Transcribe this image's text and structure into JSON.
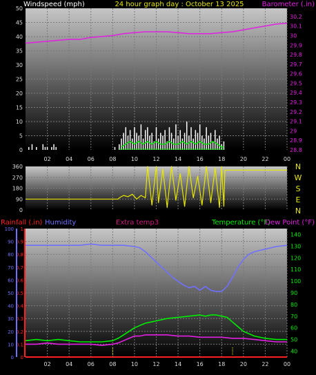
{
  "colors": {
    "background": "#000000",
    "wind": "#ffffff",
    "gust": "#ffffff",
    "wind_avg": "#00e000",
    "barometer": "#e020e0",
    "direction": "#e8e800",
    "rainfall": "#ff2020",
    "humidity": "#7070ff",
    "extra_temp": "#cc1a7a",
    "temperature": "#00ee00",
    "dew_point": "#e020e0",
    "bracket_marker": "#e8e800"
  },
  "chart_data": [
    {
      "type": "line",
      "title": "24 hour graph day : October 13 2025",
      "left_axis_label": "Windspeed (mph)",
      "right_axis_label": "Barometer (.in)",
      "x_ticks": [
        "02",
        "04",
        "06",
        "08",
        "10",
        "12",
        "14",
        "16",
        "18",
        "20",
        "22",
        "00"
      ],
      "left_ylim": [
        0,
        50
      ],
      "left_ticks": [
        "0",
        "5",
        "10",
        "15",
        "20",
        "25",
        "30",
        "35",
        "40",
        "45",
        "50"
      ],
      "right_ylim": [
        28.8,
        30.25
      ],
      "right_ticks": [
        "28.8",
        "28.9",
        "29",
        "29.1",
        "29.2",
        "29.3",
        "29.4",
        "29.5",
        "29.6",
        "29.7",
        "29.8",
        "29.9",
        "30",
        "30.1",
        "30.2"
      ],
      "grid": true,
      "series": [
        {
          "name": "Windspeed (mph)",
          "axis": "left",
          "style": "bars",
          "segments": [
            {
              "x": [
                0.3,
                0.6,
                1.0,
                1.6,
                1.8,
                2.0,
                2.4,
                2.6,
                2.8,
                8.2
              ],
              "y": [
                1,
                2,
                1,
                2,
                1,
                1,
                1,
                2,
                1,
                1
              ]
            },
            {
              "x": [
                8.6,
                8.8,
                9.0,
                9.2,
                9.4,
                9.6,
                9.8,
                10.0,
                10.2,
                10.4,
                10.6,
                10.8,
                11.0,
                11.2,
                11.4,
                11.6,
                11.8,
                12.0,
                12.2,
                12.4,
                12.6,
                12.8,
                13.0,
                13.2,
                13.4,
                13.6,
                13.8,
                14.0,
                14.2,
                14.4,
                14.6,
                14.8,
                15.0,
                15.2,
                15.4,
                15.6,
                15.8,
                16.0,
                16.2,
                16.4,
                16.6,
                16.8,
                17.0,
                17.2,
                17.4,
                17.6,
                17.8,
                18.0,
                18.2
              ],
              "y": [
                2,
                4,
                6,
                8,
                5,
                7,
                4,
                8,
                6,
                5,
                9,
                4,
                7,
                8,
                5,
                6,
                3,
                8,
                4,
                6,
                5,
                7,
                3,
                8,
                6,
                4,
                9,
                5,
                7,
                4,
                6,
                10,
                5,
                8,
                4,
                7,
                6,
                9,
                5,
                4,
                8,
                5,
                6,
                3,
                7,
                4,
                5,
                2,
                3
              ]
            }
          ]
        },
        {
          "name": "Wind average",
          "axis": "left",
          "style": "line",
          "x": [
            8.8,
            9.2,
            9.6,
            10.0,
            10.4,
            10.8,
            11.2,
            11.6,
            12.0,
            12.4,
            12.8,
            13.2,
            13.6,
            14.0,
            14.4,
            14.8,
            15.2,
            15.6,
            16.0,
            16.4,
            16.8,
            17.2,
            17.6,
            18.0,
            18.2
          ],
          "y": [
            1,
            2,
            3,
            2,
            3,
            2,
            3,
            2,
            3,
            2,
            2,
            3,
            2,
            2,
            3,
            2,
            3,
            2,
            3,
            2,
            2,
            3,
            2,
            1,
            1
          ]
        },
        {
          "name": "Barometer (.in)",
          "axis": "right",
          "style": "line",
          "x": [
            0,
            1,
            2,
            3,
            4,
            5,
            6,
            7,
            8,
            9,
            10,
            11,
            12,
            13,
            14,
            15,
            16,
            17,
            18,
            19,
            20,
            21,
            22,
            23,
            24
          ],
          "y": [
            29.92,
            29.93,
            29.94,
            29.95,
            29.96,
            29.96,
            29.98,
            29.99,
            30.0,
            30.02,
            30.03,
            30.04,
            30.04,
            30.04,
            30.03,
            30.02,
            30.02,
            30.02,
            30.03,
            30.04,
            30.06,
            30.08,
            30.1,
            30.12,
            30.13
          ]
        }
      ]
    },
    {
      "type": "line",
      "title": "",
      "x_ticks": [
        "02",
        "04",
        "06",
        "08",
        "10",
        "12",
        "14",
        "16",
        "18",
        "20",
        "22",
        "00"
      ],
      "left_ylim": [
        0,
        360
      ],
      "left_ticks": [
        "0",
        "90",
        "180",
        "270",
        "360"
      ],
      "right_ticks": [
        "N",
        "W",
        "S",
        "E",
        "N"
      ],
      "grid": true,
      "series": [
        {
          "name": "Wind direction",
          "axis": "left",
          "style": "line",
          "x": [
            0,
            8.5,
            8.6,
            9.0,
            9.4,
            9.8,
            10.2,
            10.6,
            11.0,
            11.2,
            11.6,
            12.0,
            12.2,
            12.6,
            13.0,
            13.4,
            13.8,
            14.2,
            14.6,
            15.0,
            15.4,
            15.8,
            16.2,
            16.6,
            17.0,
            17.4,
            17.8,
            18.0,
            18.2,
            18.3,
            24
          ],
          "y": [
            90,
            90,
            100,
            120,
            110,
            130,
            90,
            120,
            100,
            360,
            40,
            360,
            60,
            340,
            20,
            360,
            80,
            300,
            30,
            360,
            100,
            280,
            40,
            360,
            60,
            350,
            20,
            360,
            30,
            330,
            330
          ]
        }
      ]
    },
    {
      "type": "line",
      "title": "",
      "x_ticks": [
        "02",
        "04",
        "06",
        "08",
        "10",
        "12",
        "14",
        "16",
        "18",
        "20",
        "22",
        "00"
      ],
      "labels": {
        "rainfall": "Rainfall (.in)",
        "humidity": "Humidity",
        "extra_temp": "Extra temp3",
        "temperature": "Temperature (°F)",
        "dew_point": "Dew Point (°F)"
      },
      "humidity_ylim": [
        0,
        100
      ],
      "humidity_ticks": [
        "0",
        "10",
        "20",
        "30",
        "40",
        "50",
        "60",
        "70",
        "80",
        "90",
        "100"
      ],
      "rain_ylim": [
        0,
        1
      ],
      "rain_ticks": [
        "0",
        "0.1",
        "0.2",
        "0.3",
        "0.4",
        "0.5",
        "0.6",
        "0.7",
        "0.8",
        "0.9",
        "1"
      ],
      "temp_ylim": [
        35,
        145
      ],
      "temp_ticks": [
        "40",
        "50",
        "60",
        "70",
        "80",
        "90",
        "100",
        "110",
        "120",
        "130",
        "140"
      ],
      "grid": true,
      "markers_x": [
        8.0,
        19.0
      ],
      "series": [
        {
          "name": "Humidity",
          "axis": "humidity",
          "x": [
            0,
            1,
            2,
            3,
            4,
            5,
            6,
            7,
            8,
            9,
            10,
            10.5,
            11,
            11.5,
            12,
            12.5,
            13,
            13.5,
            14,
            14.5,
            15,
            15.5,
            16,
            16.5,
            17,
            17.5,
            18,
            18.5,
            19,
            19.5,
            20,
            20.5,
            21,
            22,
            23,
            24
          ],
          "y": [
            87,
            87,
            87,
            87,
            87,
            87,
            88,
            87,
            87,
            87,
            86,
            85,
            82,
            78,
            74,
            70,
            66,
            62,
            59,
            56,
            54,
            55,
            52,
            55,
            52,
            51,
            51,
            55,
            62,
            70,
            76,
            80,
            82,
            84,
            86,
            87
          ]
        },
        {
          "name": "Rainfall (.in)",
          "axis": "rain",
          "x": [
            0,
            24
          ],
          "y": [
            0,
            0
          ]
        },
        {
          "name": "Temperature (°F)",
          "axis": "temp",
          "x": [
            0,
            1,
            2,
            3,
            4,
            5,
            6,
            7,
            8,
            8.5,
            9,
            9.5,
            10,
            10.5,
            11,
            11.5,
            12,
            13,
            14,
            15,
            16,
            16.5,
            17,
            17.5,
            18,
            18.5,
            19,
            19.5,
            20,
            20.5,
            21,
            22,
            23,
            24
          ],
          "y": [
            49,
            50,
            49,
            50,
            49,
            48,
            48,
            48,
            49,
            51,
            54,
            57,
            60,
            62,
            64,
            65,
            66,
            68,
            69,
            70,
            71,
            70,
            71,
            71,
            70,
            69,
            65,
            61,
            57,
            55,
            53,
            51,
            50,
            50
          ]
        },
        {
          "name": "Extra temp3",
          "axis": "temp",
          "x": [
            0,
            1,
            2,
            3,
            4,
            5,
            6,
            7,
            8,
            8.5,
            9,
            9.5,
            10,
            10.5,
            11,
            12,
            13,
            14,
            15,
            16,
            17,
            18,
            19,
            20,
            21,
            22,
            23,
            24
          ],
          "y": [
            46,
            46,
            47,
            46,
            46,
            46,
            46,
            45,
            46,
            47,
            49,
            51,
            53,
            53,
            54,
            54,
            54,
            53,
            53,
            52,
            52,
            52,
            51,
            51,
            50,
            49,
            48,
            48
          ]
        },
        {
          "name": "Dew Point (°F)",
          "axis": "temp",
          "x": [
            0,
            1,
            2,
            3,
            4,
            5,
            6,
            7,
            8,
            8.5,
            9,
            9.5,
            10,
            10.5,
            11,
            12,
            13,
            14,
            15,
            16,
            17,
            18,
            19,
            20,
            21,
            22,
            23,
            24
          ],
          "y": [
            46,
            46,
            47,
            46,
            46,
            46,
            46,
            45,
            46,
            47,
            49,
            51,
            53,
            53,
            54,
            54,
            54,
            53,
            53,
            52,
            52,
            52,
            51,
            51,
            50,
            49,
            48,
            48
          ]
        }
      ]
    }
  ]
}
